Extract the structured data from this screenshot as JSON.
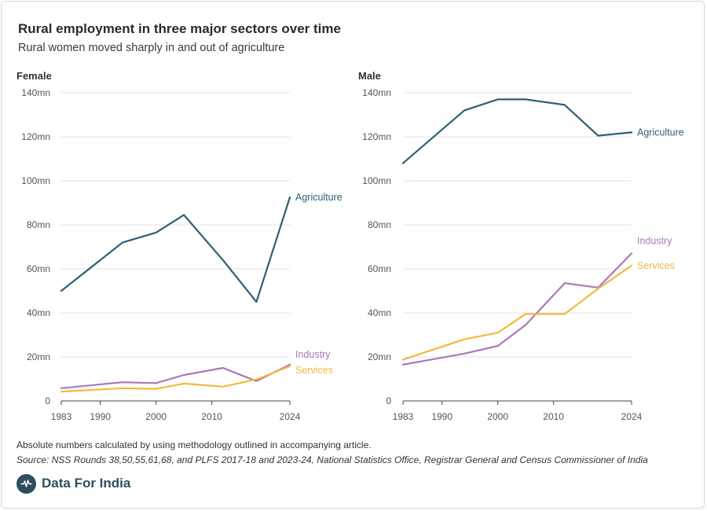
{
  "header": {
    "title": "Rural employment in three major sectors over time",
    "subtitle": "Rural women moved sharply in and out of agriculture"
  },
  "colors": {
    "agriculture": "#2f5f76",
    "industry": "#a979b8",
    "services": "#f5b83d"
  },
  "chart_data": [
    {
      "type": "line",
      "title": "Female",
      "xlabel": "",
      "ylabel": "",
      "x_ticks": [
        1983,
        1990,
        2000,
        2010,
        2024
      ],
      "y_ticks": [
        "0",
        "20mn",
        "40mn",
        "60mn",
        "80mn",
        "100mn",
        "120mn",
        "140mn"
      ],
      "ylim": [
        0,
        140
      ],
      "xlim": [
        1983,
        2024
      ],
      "series": [
        {
          "name": "Agriculture",
          "color_key": "agriculture",
          "x": [
            1983,
            1994,
            2000,
            2005,
            2012,
            2018,
            2024
          ],
          "values": [
            50,
            72,
            76.5,
            84.5,
            64,
            45,
            92.5
          ]
        },
        {
          "name": "Industry",
          "color_key": "industry",
          "x": [
            1983,
            1994,
            2000,
            2005,
            2012,
            2018,
            2024
          ],
          "values": [
            5.8,
            8.5,
            8.1,
            11.8,
            15,
            9,
            16.5
          ]
        },
        {
          "name": "Services",
          "color_key": "services",
          "x": [
            1983,
            1994,
            2000,
            2005,
            2012,
            2018,
            2024
          ],
          "values": [
            4.2,
            5.8,
            5.5,
            7.9,
            6.5,
            9.8,
            15.8
          ]
        }
      ]
    },
    {
      "type": "line",
      "title": "Male",
      "xlabel": "",
      "ylabel": "",
      "x_ticks": [
        1983,
        1990,
        2000,
        2010,
        2024
      ],
      "y_ticks": [
        "0",
        "20mn",
        "40mn",
        "60mn",
        "80mn",
        "100mn",
        "120mn",
        "140mn"
      ],
      "ylim": [
        0,
        140
      ],
      "xlim": [
        1983,
        2024
      ],
      "series": [
        {
          "name": "Agriculture",
          "color_key": "agriculture",
          "x": [
            1983,
            1994,
            2000,
            2005,
            2012,
            2018,
            2024
          ],
          "values": [
            108,
            132,
            137,
            137,
            134.5,
            120.5,
            122
          ]
        },
        {
          "name": "Industry",
          "color_key": "industry",
          "x": [
            1983,
            1994,
            2000,
            2005,
            2012,
            2018,
            2024
          ],
          "values": [
            16.5,
            21.5,
            25,
            34.5,
            53.5,
            51.5,
            67
          ]
        },
        {
          "name": "Services",
          "color_key": "services",
          "x": [
            1983,
            1994,
            2000,
            2005,
            2012,
            2018,
            2024
          ],
          "values": [
            18.8,
            28,
            31,
            39.5,
            39.5,
            51,
            61.5
          ]
        }
      ]
    }
  ],
  "footer": {
    "note": "Absolute numbers calculated by using methodology outlined in accompanying article.",
    "source": "Source: NSS Rounds 38,50,55,61,68, and PLFS 2017-18 and 2023-24, National Statistics Office, Registrar General and Census Commissioner of India",
    "brand": "Data For India"
  }
}
